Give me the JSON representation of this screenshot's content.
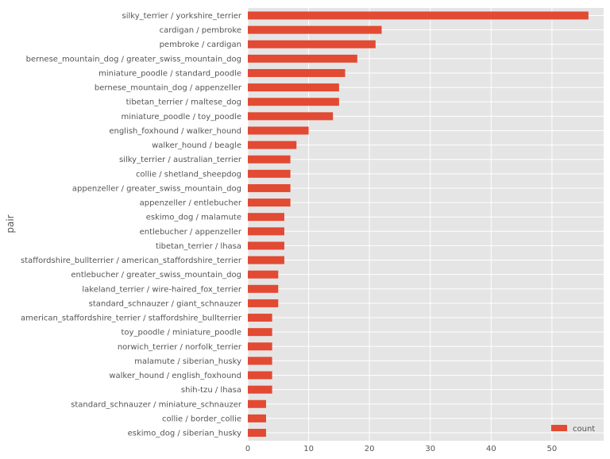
{
  "chart_data": {
    "type": "bar",
    "orientation": "horizontal",
    "title": "",
    "xlabel": "",
    "ylabel": "pair",
    "xlim": [
      0,
      58.5
    ],
    "xticks": [
      0,
      10,
      20,
      30,
      40,
      50
    ],
    "grid": true,
    "legend_position": "lower right",
    "series": [
      {
        "name": "count",
        "color": "#E24A33",
        "categories": [
          "silky_terrier / yorkshire_terrier",
          "cardigan / pembroke",
          "pembroke / cardigan",
          "bernese_mountain_dog / greater_swiss_mountain_dog",
          "miniature_poodle / standard_poodle",
          "bernese_mountain_dog / appenzeller",
          "tibetan_terrier / maltese_dog",
          "miniature_poodle / toy_poodle",
          "english_foxhound / walker_hound",
          "walker_hound / beagle",
          "silky_terrier / australian_terrier",
          "collie / shetland_sheepdog",
          "appenzeller / greater_swiss_mountain_dog",
          "appenzeller / entlebucher",
          "eskimo_dog / malamute",
          "entlebucher / appenzeller",
          "tibetan_terrier / lhasa",
          "staffordshire_bullterrier / american_staffordshire_terrier",
          "entlebucher / greater_swiss_mountain_dog",
          "lakeland_terrier / wire-haired_fox_terrier",
          "standard_schnauzer / giant_schnauzer",
          "american_staffordshire_terrier / staffordshire_bullterrier",
          "toy_poodle / miniature_poodle",
          "norwich_terrier / norfolk_terrier",
          "malamute / siberian_husky",
          "walker_hound / english_foxhound",
          "shih-tzu / lhasa",
          "standard_schnauzer / miniature_schnauzer",
          "collie / border_collie",
          "eskimo_dog / siberian_husky"
        ],
        "values": [
          56,
          22,
          21,
          18,
          16,
          15,
          15,
          14,
          10,
          8,
          7,
          7,
          7,
          7,
          6,
          6,
          6,
          6,
          5,
          5,
          5,
          4,
          4,
          4,
          4,
          4,
          4,
          3,
          3,
          3
        ]
      }
    ]
  },
  "style": {
    "background": "#E5E5E5",
    "grid_color": "#FFFFFF",
    "text_color": "#555555"
  }
}
